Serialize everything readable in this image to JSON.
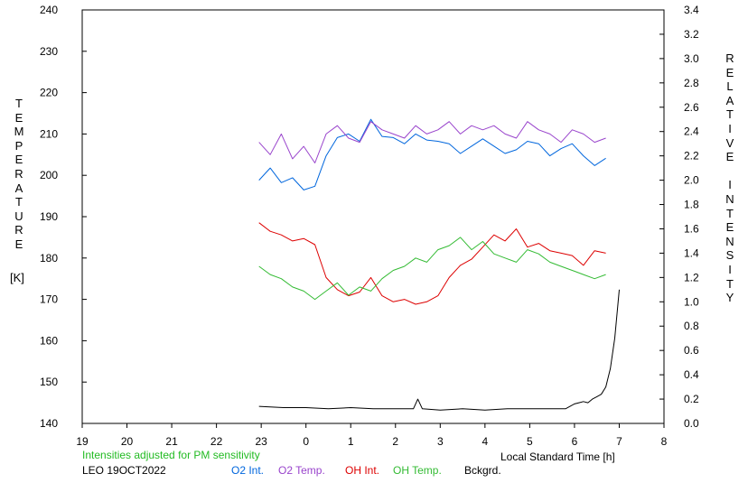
{
  "chart_data": {
    "type": "line",
    "station_date": "LEO 19OCT2022",
    "note": "Intensities adjusted for PM sensitivity",
    "xlabel": "Local Standard Time [h]",
    "ylabel_left": "TEMPERATURE",
    "ylabel_left_unit": "[K]",
    "ylabel_right": "RELATIVE INTENSITY",
    "x_ticks": [
      "19",
      "20",
      "21",
      "22",
      "23",
      "0",
      "1",
      "2",
      "3",
      "4",
      "5",
      "6",
      "7",
      "8"
    ],
    "x_range_hours": [
      19,
      32
    ],
    "y_left_range": [
      140,
      240
    ],
    "y_left_ticks": [
      "240",
      "230",
      "220",
      "210",
      "200",
      "190",
      "180",
      "170",
      "160",
      "150",
      "140"
    ],
    "y_right_range": [
      0.0,
      3.4
    ],
    "y_right_ticks": [
      "3.4",
      "3.2",
      "3.0",
      "2.8",
      "2.6",
      "2.4",
      "2.2",
      "2.0",
      "1.8",
      "1.6",
      "1.4",
      "1.2",
      "1.0",
      "0.8",
      "0.6",
      "0.4",
      "0.2",
      "0.0"
    ],
    "series": [
      {
        "name": "O2 Int.",
        "color": "#0066dd",
        "axis": "right",
        "x": [
          22.95,
          23.2,
          23.45,
          23.7,
          23.95,
          24.2,
          24.45,
          24.7,
          24.95,
          25.2,
          25.45,
          25.7,
          25.95,
          26.2,
          26.45,
          26.7,
          26.95,
          27.2,
          27.45,
          27.7,
          27.95,
          28.2,
          28.45,
          28.7,
          28.95,
          29.2,
          29.45,
          29.7,
          29.95,
          30.2,
          30.45,
          30.7
        ],
        "y": [
          2.0,
          2.1,
          1.98,
          2.02,
          1.92,
          1.95,
          2.2,
          2.35,
          2.38,
          2.32,
          2.5,
          2.36,
          2.35,
          2.3,
          2.38,
          2.33,
          2.32,
          2.3,
          2.22,
          2.28,
          2.34,
          2.28,
          2.22,
          2.25,
          2.32,
          2.3,
          2.2,
          2.26,
          2.3,
          2.2,
          2.12,
          2.18
        ]
      },
      {
        "name": "O2 Temp.",
        "color": "#9944cc",
        "axis": "left",
        "x": [
          22.95,
          23.2,
          23.45,
          23.7,
          23.95,
          24.2,
          24.45,
          24.7,
          24.95,
          25.2,
          25.45,
          25.7,
          25.95,
          26.2,
          26.45,
          26.7,
          26.95,
          27.2,
          27.45,
          27.7,
          27.95,
          28.2,
          28.45,
          28.7,
          28.95,
          29.2,
          29.45,
          29.7,
          29.95,
          30.2,
          30.45,
          30.7
        ],
        "y": [
          208,
          205,
          210,
          204,
          207,
          203,
          210,
          212,
          209,
          208,
          213,
          211,
          210,
          209,
          212,
          210,
          211,
          213,
          210,
          212,
          211,
          212,
          210,
          209,
          213,
          211,
          210,
          208,
          211,
          210,
          208,
          209
        ]
      },
      {
        "name": "OH Int.",
        "color": "#dd0000",
        "axis": "right",
        "x": [
          22.95,
          23.2,
          23.45,
          23.7,
          23.95,
          24.2,
          24.45,
          24.7,
          24.95,
          25.2,
          25.45,
          25.7,
          25.95,
          26.2,
          26.45,
          26.7,
          26.95,
          27.2,
          27.45,
          27.7,
          27.95,
          28.2,
          28.45,
          28.7,
          28.95,
          29.2,
          29.45,
          29.7,
          29.95,
          30.2,
          30.45,
          30.7
        ],
        "y": [
          1.65,
          1.58,
          1.55,
          1.5,
          1.52,
          1.47,
          1.2,
          1.1,
          1.05,
          1.08,
          1.2,
          1.05,
          1.0,
          1.02,
          0.98,
          1.0,
          1.05,
          1.2,
          1.3,
          1.35,
          1.45,
          1.55,
          1.5,
          1.6,
          1.45,
          1.48,
          1.42,
          1.4,
          1.38,
          1.3,
          1.42,
          1.4
        ]
      },
      {
        "name": "OH Temp.",
        "color": "#33bb33",
        "axis": "left",
        "x": [
          22.95,
          23.2,
          23.45,
          23.7,
          23.95,
          24.2,
          24.45,
          24.7,
          24.95,
          25.2,
          25.45,
          25.7,
          25.95,
          26.2,
          26.45,
          26.7,
          26.95,
          27.2,
          27.45,
          27.7,
          27.95,
          28.2,
          28.45,
          28.7,
          28.95,
          29.2,
          29.45,
          29.7,
          29.95,
          30.2,
          30.45,
          30.7
        ],
        "y": [
          178,
          176,
          175,
          173,
          172,
          170,
          172,
          174,
          171,
          173,
          172,
          175,
          177,
          178,
          180,
          179,
          182,
          183,
          185,
          182,
          184,
          181,
          180,
          179,
          182,
          181,
          179,
          178,
          177,
          176,
          175,
          176
        ]
      },
      {
        "name": "Bckgrd.",
        "color": "#000000",
        "axis": "right",
        "x": [
          22.95,
          23.5,
          24.0,
          24.5,
          25.0,
          25.5,
          26.0,
          26.4,
          26.5,
          26.6,
          27.0,
          27.5,
          28.0,
          28.5,
          29.0,
          29.5,
          29.8,
          29.9,
          30.0,
          30.1,
          30.2,
          30.3,
          30.4,
          30.5,
          30.6,
          30.7,
          30.8,
          30.9,
          31.0
        ],
        "y": [
          0.14,
          0.13,
          0.13,
          0.12,
          0.13,
          0.12,
          0.12,
          0.12,
          0.2,
          0.12,
          0.11,
          0.12,
          0.11,
          0.12,
          0.12,
          0.12,
          0.12,
          0.14,
          0.16,
          0.17,
          0.18,
          0.17,
          0.2,
          0.22,
          0.24,
          0.3,
          0.45,
          0.7,
          1.1
        ]
      }
    ]
  }
}
